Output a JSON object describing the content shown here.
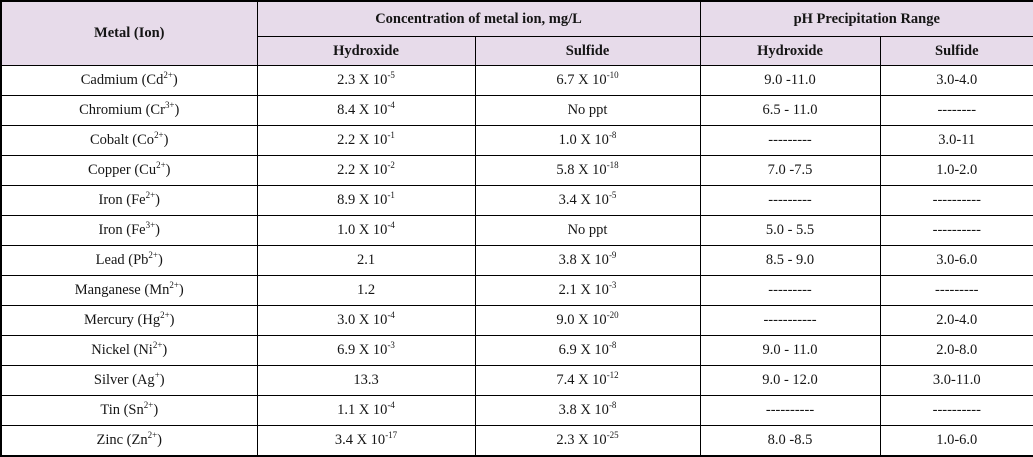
{
  "colors": {
    "header_bg": "#e7dbea",
    "border": "#000000",
    "text": "#151515"
  },
  "table": {
    "header": {
      "metal_column": "Metal (Ion)",
      "concentration_group": "Concentration of metal ion, mg/L",
      "ph_group": "pH Precipitation Range",
      "sub_headers": [
        "Hydroxide",
        "Sulfide",
        "Hydroxide",
        "Sulfide"
      ]
    },
    "rows": [
      {
        "metal": "Cadmium (Cd~2+~)",
        "conc_hydroxide": "2.3 X 10~-5~",
        "conc_sulfide": "6.7 X 10~-10~",
        "ph_hydroxide": "9.0 -11.0",
        "ph_sulfide": "3.0-4.0"
      },
      {
        "metal": "Chromium (Cr~3+~)",
        "conc_hydroxide": "8.4 X 10~-4~",
        "conc_sulfide": "No ppt",
        "ph_hydroxide": "6.5 - 11.0",
        "ph_sulfide": "--------"
      },
      {
        "metal": "Cobalt (Co~2+~)",
        "conc_hydroxide": "2.2 X 10~-1~",
        "conc_sulfide": "1.0 X 10~-8~",
        "ph_hydroxide": "---------",
        "ph_sulfide": "3.0-11"
      },
      {
        "metal": "Copper (Cu~2+~)",
        "conc_hydroxide": "2.2 X 10~-2~",
        "conc_sulfide": "5.8 X 10~-18~",
        "ph_hydroxide": "7.0 -7.5",
        "ph_sulfide": "1.0-2.0"
      },
      {
        "metal": "Iron (Fe~2+~)",
        "conc_hydroxide": "8.9 X 10~-1~",
        "conc_sulfide": "3.4 X 10~-5~",
        "ph_hydroxide": "---------",
        "ph_sulfide": "----------"
      },
      {
        "metal": "Iron (Fe~3+~)",
        "conc_hydroxide": "1.0 X 10~-4~",
        "conc_sulfide": "No ppt",
        "ph_hydroxide": "5.0 - 5.5",
        "ph_sulfide": "----------"
      },
      {
        "metal": "Lead (Pb~2+~)",
        "conc_hydroxide": "2.1",
        "conc_sulfide": "3.8 X 10~-9~",
        "ph_hydroxide": "8.5 - 9.0",
        "ph_sulfide": "3.0-6.0"
      },
      {
        "metal": "Manganese (Mn~2+~)",
        "conc_hydroxide": "1.2",
        "conc_sulfide": "2.1 X 10~-3~",
        "ph_hydroxide": "---------",
        "ph_sulfide": "---------"
      },
      {
        "metal": "Mercury (Hg~2+~)",
        "conc_hydroxide": "3.0 X 10~-4~",
        "conc_sulfide": "9.0 X 10~-20~",
        "ph_hydroxide": "-----------",
        "ph_sulfide": "2.0-4.0"
      },
      {
        "metal": "Nickel (Ni~2+~)",
        "conc_hydroxide": "6.9 X 10~-3~",
        "conc_sulfide": "6.9 X 10~-8~",
        "ph_hydroxide": "9.0 - 11.0",
        "ph_sulfide": "2.0-8.0"
      },
      {
        "metal": "Silver (Ag~+~)",
        "conc_hydroxide": "13.3",
        "conc_sulfide": "7.4 X 10~-12~",
        "ph_hydroxide": "9.0 - 12.0",
        "ph_sulfide": "3.0-11.0"
      },
      {
        "metal": "Tin (Sn~2+~)",
        "conc_hydroxide": "1.1 X 10~-4~",
        "conc_sulfide": "3.8 X 10~-8~",
        "ph_hydroxide": "----------",
        "ph_sulfide": "----------"
      },
      {
        "metal": "Zinc (Zn~2+~)",
        "conc_hydroxide": "3.4 X 10~-17~",
        "conc_sulfide": "2.3 X 10~-25~",
        "ph_hydroxide": "8.0 -8.5",
        "ph_sulfide": "1.0-6.0"
      }
    ]
  }
}
